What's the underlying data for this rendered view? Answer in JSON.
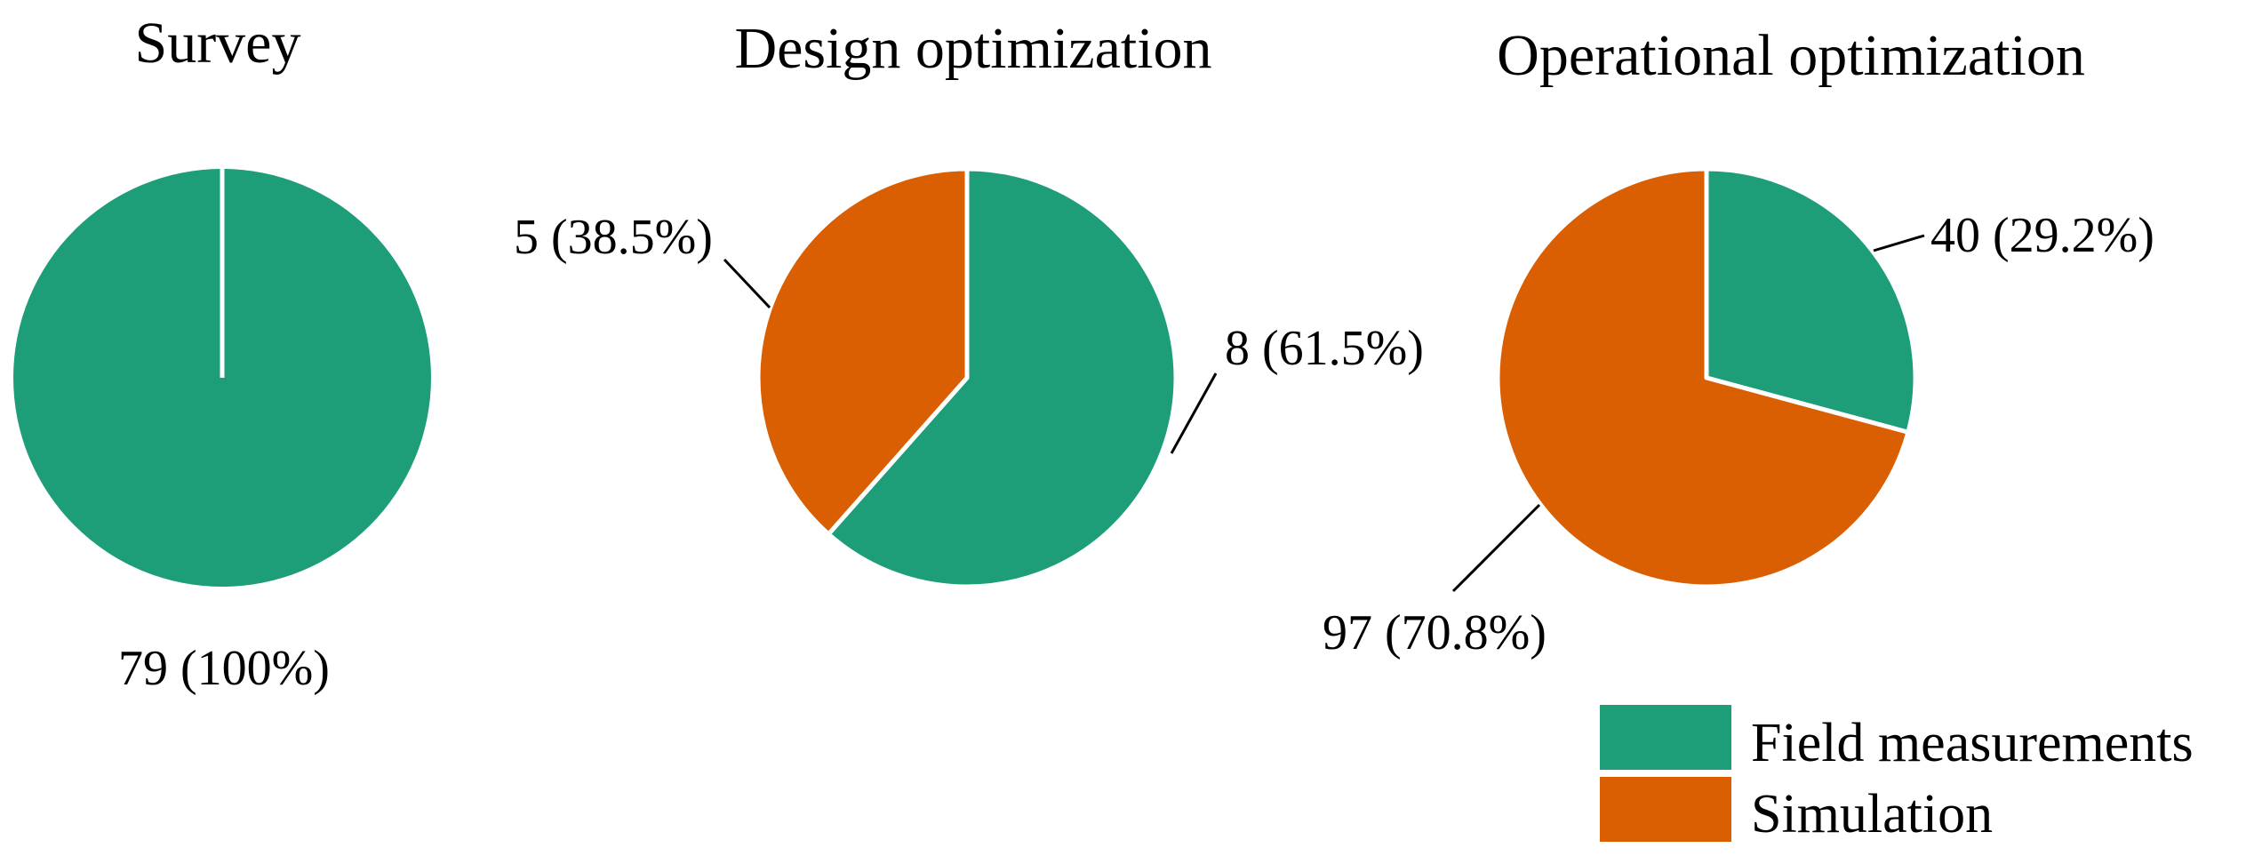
{
  "colors": {
    "field_measurements": "#1d9d78",
    "simulation": "#d95f02"
  },
  "chart_data": [
    {
      "type": "pie",
      "title": "Survey",
      "slices": [
        {
          "category": "Field measurements",
          "value": 79,
          "percent": 100,
          "label": "79 (100%)"
        }
      ]
    },
    {
      "type": "pie",
      "title": "Design optimization",
      "slices": [
        {
          "category": "Field measurements",
          "value": 8,
          "percent": 61.5,
          "label": "8 (61.5%)"
        },
        {
          "category": "Simulation",
          "value": 5,
          "percent": 38.5,
          "label": "5 (38.5%)"
        }
      ]
    },
    {
      "type": "pie",
      "title": "Operational optimization",
      "slices": [
        {
          "category": "Field measurements",
          "value": 40,
          "percent": 29.2,
          "label": "40 (29.2%)"
        },
        {
          "category": "Simulation",
          "value": 97,
          "percent": 70.8,
          "label": "97 (70.8%)"
        }
      ]
    }
  ],
  "legend": {
    "position": "bottom-right",
    "items": [
      {
        "label": "Field measurements",
        "color": "#1d9d78"
      },
      {
        "label": "Simulation",
        "color": "#d95f02"
      }
    ]
  }
}
